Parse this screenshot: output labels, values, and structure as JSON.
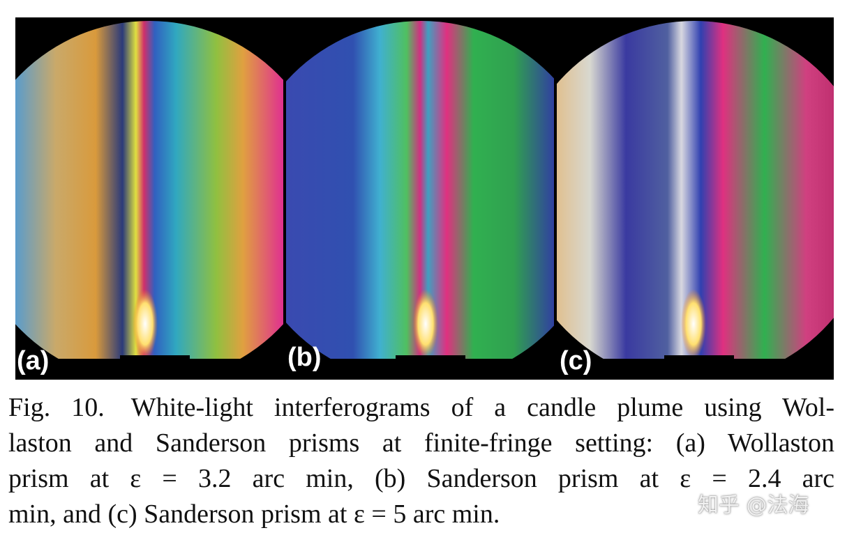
{
  "figure": {
    "panels": [
      {
        "label": "(a)"
      },
      {
        "label": "(b)"
      },
      {
        "label": "(c)"
      }
    ]
  },
  "caption": {
    "lines": [
      "Fig. 10. White-light interferograms of a candle plume using Wol-",
      "laston and Sanderson prisms at finite-fringe setting: (a) Wollaston",
      "prism at ε = 3.2 arc min, (b) Sanderson prism at ε = 2.4 arc",
      "min, and (c) Sanderson prism at ε = 5 arc min."
    ]
  },
  "watermark": "知乎 @法海"
}
